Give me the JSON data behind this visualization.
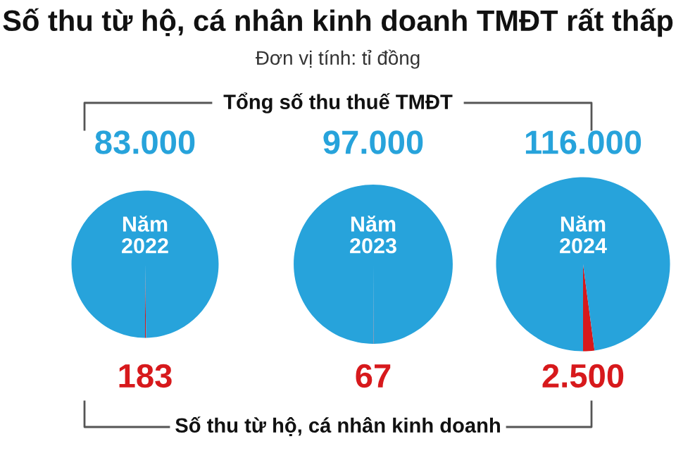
{
  "chart_data": [
    {
      "type": "pie",
      "title": "Năm 2022",
      "values": [
        183,
        83000
      ],
      "colors": [
        "#d7191c",
        "#27a3db"
      ],
      "value_labels": [
        "183",
        "83.000"
      ],
      "annotations": [
        "Số thu từ hộ, cá nhân kinh doanh TMĐT rất thấp",
        "Đơn vị tính: tỉ đồng",
        "Tổng số thu thuế TMĐT",
        "Số thu từ hộ, cá nhân kinh doanh"
      ]
    },
    {
      "type": "pie",
      "title": "Năm 2023",
      "values": [
        67,
        97000
      ],
      "colors": [
        "#d7191c",
        "#27a3db"
      ],
      "value_labels": [
        "67",
        "97.000"
      ]
    },
    {
      "type": "pie",
      "title": "Năm 2024",
      "values": [
        2500,
        116000
      ],
      "colors": [
        "#d7191c",
        "#27a3db"
      ],
      "value_labels": [
        "2.500",
        "116.000"
      ]
    }
  ]
}
